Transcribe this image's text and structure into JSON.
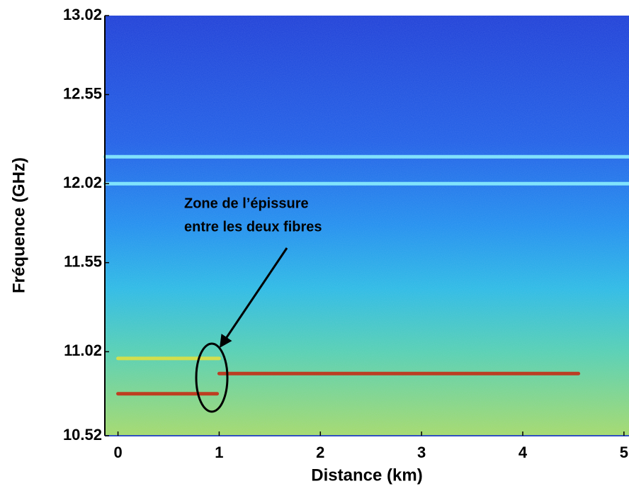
{
  "chart_data": {
    "type": "line",
    "xlabel": "Distance (km)",
    "ylabel": "Fréquence (GHz)",
    "annotation": [
      "Zone de l’épissure",
      "entre les deux fibres"
    ],
    "xlim": [
      -0.13,
      5.05
    ],
    "ylim": [
      10.52,
      13.02
    ],
    "xticks": [
      0,
      1,
      2,
      3,
      4,
      5
    ],
    "yticks": [
      10.52,
      11.02,
      11.55,
      12.02,
      12.55,
      13.02
    ],
    "series": [
      {
        "color": "#8ff4ff",
        "x": [
          -0.13,
          5.05
        ],
        "values": [
          12.18,
          12.18
        ]
      },
      {
        "color": "#8ff4ff",
        "x": [
          -0.13,
          5.05
        ],
        "values": [
          12.02,
          12.02
        ]
      },
      {
        "color": "#e6e23c",
        "x": [
          0,
          1
        ],
        "values": [
          10.98,
          10.98
        ]
      },
      {
        "color": "#c8230c",
        "x": [
          0,
          0.98
        ],
        "values": [
          10.77,
          10.77
        ]
      },
      {
        "color": "#c8230c",
        "x": [
          1,
          4.55
        ],
        "values": [
          10.89,
          10.89
        ]
      }
    ]
  }
}
